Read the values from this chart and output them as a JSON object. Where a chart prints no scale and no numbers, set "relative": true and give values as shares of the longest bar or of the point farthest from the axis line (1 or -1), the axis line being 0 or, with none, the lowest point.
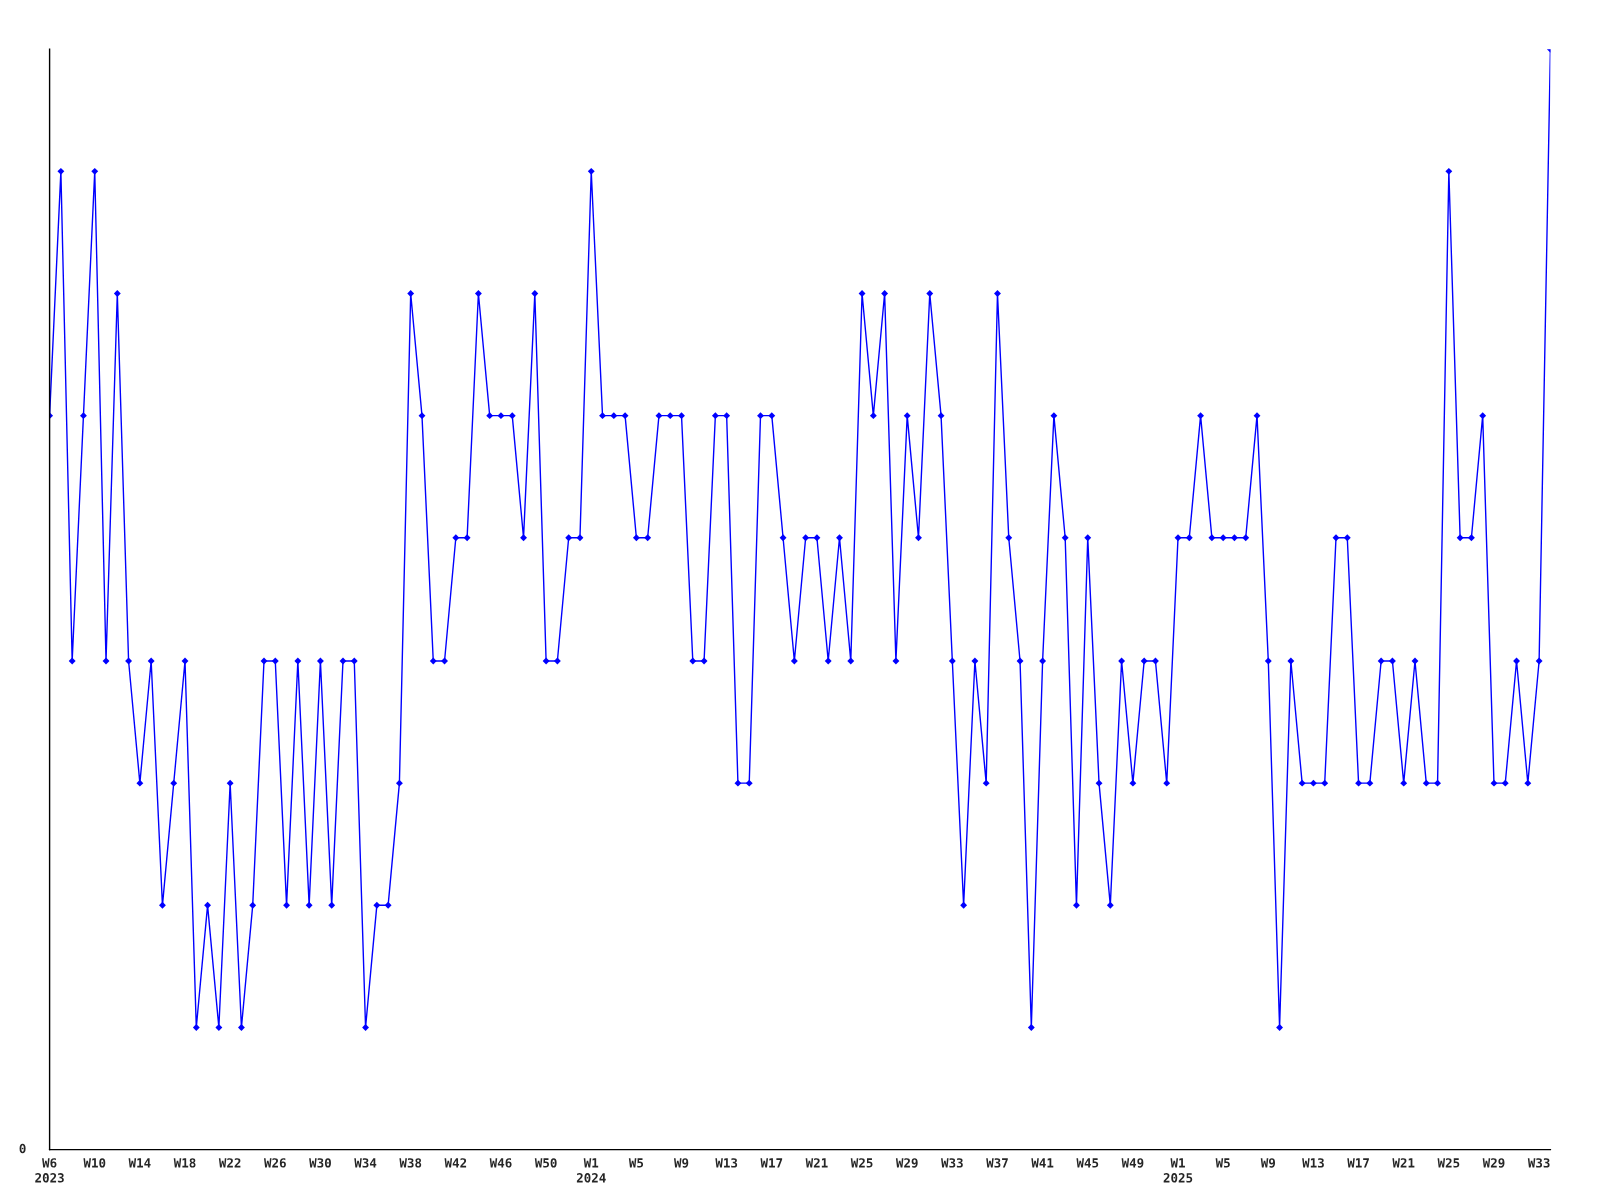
{
  "chart_data": {
    "type": "line",
    "relative": true,
    "marker": "diamond",
    "line_style": "solid",
    "grid": false,
    "legend": false,
    "annotations": [
      "0"
    ],
    "categories": [
      "W6\n2023",
      null,
      null,
      null,
      "W10",
      null,
      null,
      null,
      "W14",
      null,
      null,
      null,
      "W18",
      null,
      null,
      null,
      "W22",
      null,
      null,
      null,
      "W26",
      null,
      null,
      null,
      "W30",
      null,
      null,
      null,
      "W34",
      null,
      null,
      null,
      "W38",
      null,
      null,
      null,
      "W42",
      null,
      null,
      null,
      "W46",
      null,
      null,
      null,
      "W50",
      null,
      null,
      null,
      "W1\n2024",
      null,
      null,
      null,
      "W5",
      null,
      null,
      null,
      "W9",
      null,
      null,
      null,
      "W13",
      null,
      null,
      null,
      "W17",
      null,
      null,
      null,
      "W21",
      null,
      null,
      null,
      "W25",
      null,
      null,
      null,
      "W29",
      null,
      null,
      null,
      "W33",
      null,
      null,
      null,
      "W37",
      null,
      null,
      null,
      "W41",
      null,
      null,
      null,
      "W45",
      null,
      null,
      null,
      "W49",
      null,
      null,
      null,
      "W1\n2025",
      null,
      null,
      null,
      "W5",
      null,
      null,
      null,
      "W9",
      null,
      null,
      null,
      "W13",
      null,
      null,
      null,
      "W17",
      null,
      null,
      null,
      "W21",
      null,
      null,
      null,
      "W25",
      null,
      null,
      null,
      "W29",
      null,
      null,
      null,
      "W33",
      null
    ],
    "series": [
      {
        "color": "#0000ff",
        "values": [
          0.667,
          0.889,
          0.444,
          0.667,
          0.889,
          0.444,
          0.778,
          0.444,
          0.333,
          0.444,
          0.222,
          0.333,
          0.444,
          0.111,
          0.222,
          0.111,
          0.333,
          0.111,
          0.222,
          0.444,
          0.444,
          0.222,
          0.444,
          0.222,
          0.444,
          0.222,
          0.444,
          0.444,
          0.111,
          0.222,
          0.222,
          0.333,
          0.778,
          0.667,
          0.444,
          0.444,
          0.556,
          0.556,
          0.778,
          0.667,
          0.667,
          0.667,
          0.556,
          0.778,
          0.444,
          0.444,
          0.556,
          0.556,
          0.889,
          0.667,
          0.667,
          0.667,
          0.556,
          0.556,
          0.667,
          0.667,
          0.667,
          0.444,
          0.444,
          0.667,
          0.667,
          0.333,
          0.333,
          0.667,
          0.667,
          0.556,
          0.444,
          0.556,
          0.556,
          0.444,
          0.556,
          0.444,
          0.778,
          0.667,
          0.778,
          0.444,
          0.667,
          0.556,
          0.778,
          0.667,
          0.444,
          0.222,
          0.444,
          0.333,
          0.778,
          0.556,
          0.444,
          0.111,
          0.444,
          0.667,
          0.556,
          0.222,
          0.556,
          0.333,
          0.222,
          0.444,
          0.333,
          0.444,
          0.444,
          0.333,
          0.556,
          0.556,
          0.667,
          0.556,
          0.556,
          0.556,
          0.556,
          0.667,
          0.444,
          0.111,
          0.444,
          0.333,
          0.333,
          0.333,
          0.556,
          0.556,
          0.333,
          0.333,
          0.444,
          0.444,
          0.333,
          0.444,
          0.333,
          0.333,
          0.889,
          0.556,
          0.556,
          0.667,
          0.333,
          0.333,
          0.444,
          0.333,
          0.444,
          1
        ]
      }
    ]
  }
}
